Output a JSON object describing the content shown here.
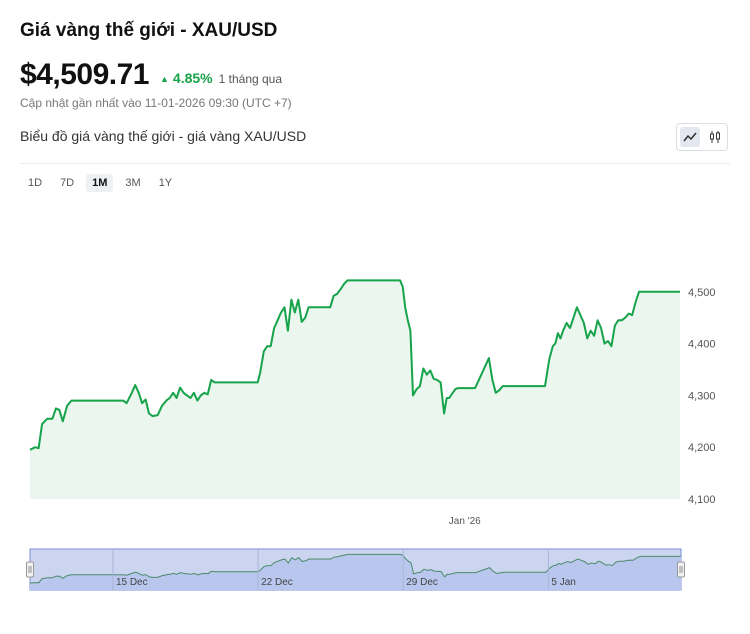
{
  "header": {
    "title": "Giá vàng thế giới - XAU/USD",
    "price": "$4,509.71",
    "change_pct": "4.85%",
    "change_period": "1 tháng qua",
    "updated": "Cập nhật gần nhất vào 11-01-2026 09:30 (UTC +7)"
  },
  "chart_section": {
    "subtitle": "Biểu đồ giá vàng thế giới - giá vàng XAU/USD",
    "view_toggle": [
      "line-chart-icon",
      "candlestick-icon"
    ],
    "active_view": "line-chart-icon"
  },
  "ranges": {
    "items": [
      "1D",
      "7D",
      "1M",
      "3M",
      "1Y"
    ],
    "active": "1M"
  },
  "colors": {
    "line": "#16a34a",
    "fill": "#eaf6ee",
    "navigator_fill": "#ccd5f0",
    "navigator_border": "#7c8ed8",
    "text": "#111111",
    "positive": "#16a34a"
  },
  "chart_data": {
    "type": "area",
    "title": "",
    "xlabel": "",
    "ylabel": "",
    "ylim": [
      4100,
      4600
    ],
    "yticks": [
      4100,
      4200,
      4300,
      4400,
      4500
    ],
    "ytick_labels": [
      "4,100",
      "4,200",
      "4,300",
      "4,400",
      "4,500"
    ],
    "y_axis_position": "right",
    "x_labels": [
      {
        "label": "Jan '26",
        "date": "2026-01-01"
      }
    ],
    "x_range": [
      "2025-12-11",
      "2026-01-11"
    ],
    "series": [
      {
        "points": [
          [
            "2025-12-11 00:00",
            4195
          ],
          [
            "2025-12-11 06:00",
            4200
          ],
          [
            "2025-12-11 10:00",
            4198
          ],
          [
            "2025-12-11 14:00",
            4245
          ],
          [
            "2025-12-11 20:00",
            4255
          ],
          [
            "2025-12-12 02:00",
            4255
          ],
          [
            "2025-12-12 06:00",
            4275
          ],
          [
            "2025-12-12 10:00",
            4272
          ],
          [
            "2025-12-12 14:00",
            4250
          ],
          [
            "2025-12-12 19:00",
            4280
          ],
          [
            "2025-12-13 00:00",
            4290
          ],
          [
            "2025-12-15 12:00",
            4290
          ],
          [
            "2025-12-15 16:00",
            4285
          ],
          [
            "2025-12-15 22:00",
            4305
          ],
          [
            "2025-12-16 02:00",
            4320
          ],
          [
            "2025-12-16 06:00",
            4305
          ],
          [
            "2025-12-16 10:00",
            4285
          ],
          [
            "2025-12-16 14:00",
            4292
          ],
          [
            "2025-12-16 18:00",
            4265
          ],
          [
            "2025-12-16 22:00",
            4260
          ],
          [
            "2025-12-17 04:00",
            4262
          ],
          [
            "2025-12-17 09:00",
            4280
          ],
          [
            "2025-12-17 14:00",
            4290
          ],
          [
            "2025-12-17 18:00",
            4295
          ],
          [
            "2025-12-17 22:00",
            4305
          ],
          [
            "2025-12-18 02:00",
            4295
          ],
          [
            "2025-12-18 06:00",
            4315
          ],
          [
            "2025-12-18 10:00",
            4305
          ],
          [
            "2025-12-18 14:00",
            4300
          ],
          [
            "2025-12-18 18:00",
            4295
          ],
          [
            "2025-12-18 22:00",
            4305
          ],
          [
            "2025-12-19 02:00",
            4290
          ],
          [
            "2025-12-19 06:00",
            4300
          ],
          [
            "2025-12-19 10:00",
            4305
          ],
          [
            "2025-12-19 14:00",
            4302
          ],
          [
            "2025-12-19 18:00",
            4330
          ],
          [
            "2025-12-19 22:00",
            4325
          ],
          [
            "2025-12-22 00:00",
            4325
          ],
          [
            "2025-12-22 03:00",
            4345
          ],
          [
            "2025-12-22 07:00",
            4385
          ],
          [
            "2025-12-22 11:00",
            4395
          ],
          [
            "2025-12-22 15:00",
            4395
          ],
          [
            "2025-12-22 19:00",
            4430
          ],
          [
            "2025-12-22 23:00",
            4445
          ],
          [
            "2025-12-23 03:00",
            4460
          ],
          [
            "2025-12-23 07:00",
            4470
          ],
          [
            "2025-12-23 11:00",
            4425
          ],
          [
            "2025-12-23 15:00",
            4485
          ],
          [
            "2025-12-23 19:00",
            4460
          ],
          [
            "2025-12-23 23:00",
            4485
          ],
          [
            "2025-12-24 03:00",
            4442
          ],
          [
            "2025-12-24 07:00",
            4450
          ],
          [
            "2025-12-24 11:00",
            4470
          ],
          [
            "2025-12-24 15:00",
            4470
          ],
          [
            "2025-12-25 12:00",
            4470
          ],
          [
            "2025-12-25 16:00",
            4492
          ],
          [
            "2025-12-25 20:00",
            4496
          ],
          [
            "2025-12-26 00:00",
            4505
          ],
          [
            "2025-12-26 04:00",
            4515
          ],
          [
            "2025-12-26 08:00",
            4522
          ],
          [
            "2025-12-28 21:00",
            4522
          ],
          [
            "2025-12-29 00:00",
            4510
          ],
          [
            "2025-12-29 03:00",
            4470
          ],
          [
            "2025-12-29 06:00",
            4445
          ],
          [
            "2025-12-29 09:00",
            4425
          ],
          [
            "2025-12-29 12:00",
            4300
          ],
          [
            "2025-12-29 16:00",
            4312
          ],
          [
            "2025-12-29 20:00",
            4318
          ],
          [
            "2025-12-30 00:00",
            4352
          ],
          [
            "2025-12-30 04:00",
            4340
          ],
          [
            "2025-12-30 08:00",
            4348
          ],
          [
            "2025-12-30 12:00",
            4332
          ],
          [
            "2025-12-30 16:00",
            4330
          ],
          [
            "2025-12-30 20:00",
            4325
          ],
          [
            "2025-12-31 00:00",
            4265
          ],
          [
            "2025-12-31 03:00",
            4295
          ],
          [
            "2025-12-31 06:00",
            4295
          ],
          [
            "2025-12-31 10:00",
            4305
          ],
          [
            "2025-12-31 13:00",
            4312
          ],
          [
            "2025-12-31 16:00",
            4314
          ],
          [
            "2026-01-01 12:00",
            4314
          ],
          [
            "2026-01-02 04:00",
            4372
          ],
          [
            "2026-01-02 08:00",
            4330
          ],
          [
            "2026-01-02 12:00",
            4305
          ],
          [
            "2026-01-02 16:00",
            4310
          ],
          [
            "2026-01-02 20:00",
            4318
          ],
          [
            "2026-01-04 21:00",
            4318
          ],
          [
            "2026-01-05 02:00",
            4370
          ],
          [
            "2026-01-05 06:00",
            4395
          ],
          [
            "2026-01-05 09:00",
            4400
          ],
          [
            "2026-01-05 12:00",
            4420
          ],
          [
            "2026-01-05 15:00",
            4410
          ],
          [
            "2026-01-05 18:00",
            4425
          ],
          [
            "2026-01-05 22:00",
            4440
          ],
          [
            "2026-01-06 02:00",
            4430
          ],
          [
            "2026-01-06 06:00",
            4450
          ],
          [
            "2026-01-06 10:00",
            4470
          ],
          [
            "2026-01-06 14:00",
            4455
          ],
          [
            "2026-01-06 18:00",
            4440
          ],
          [
            "2026-01-06 22:00",
            4410
          ],
          [
            "2026-01-07 02:00",
            4425
          ],
          [
            "2026-01-07 06:00",
            4415
          ],
          [
            "2026-01-07 10:00",
            4445
          ],
          [
            "2026-01-07 14:00",
            4430
          ],
          [
            "2026-01-07 18:00",
            4400
          ],
          [
            "2026-01-07 22:00",
            4405
          ],
          [
            "2026-01-08 02:00",
            4395
          ],
          [
            "2026-01-08 06:00",
            4435
          ],
          [
            "2026-01-08 10:00",
            4445
          ],
          [
            "2026-01-08 14:00",
            4445
          ],
          [
            "2026-01-08 18:00",
            4450
          ],
          [
            "2026-01-08 22:00",
            4458
          ],
          [
            "2026-01-09 02:00",
            4455
          ],
          [
            "2026-01-09 06:00",
            4480
          ],
          [
            "2026-01-09 10:00",
            4500
          ],
          [
            "2026-01-09 14:00",
            4500
          ],
          [
            "2026-01-11 09:30",
            4500
          ]
        ]
      }
    ],
    "navigator": {
      "labels": [
        {
          "label": "15 Dec",
          "date": "2025-12-15"
        },
        {
          "label": "22 Dec",
          "date": "2025-12-22"
        },
        {
          "label": "29 Dec",
          "date": "2025-12-29"
        },
        {
          "label": "5 Jan",
          "date": "2026-01-05"
        }
      ]
    },
    "grid": false,
    "legend": "none"
  }
}
